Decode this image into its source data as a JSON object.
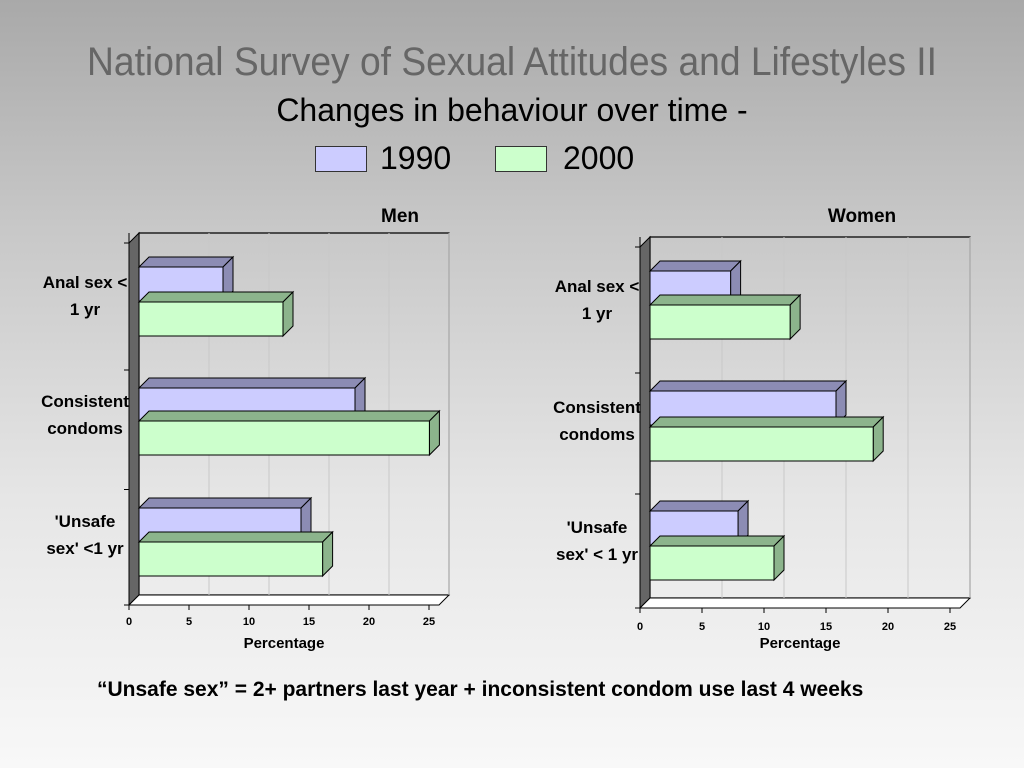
{
  "slide": {
    "title": "National Survey of Sexual Attitudes and Lifestyles II",
    "subtitle": "Changes in behaviour over time -",
    "footnote": "“Unsafe sex” = 2+ partners last year + inconsistent condom use  last 4 weeks"
  },
  "legend": [
    {
      "label": "1990",
      "color": "#ccccff"
    },
    {
      "label": "2000",
      "color": "#ccffcc"
    }
  ],
  "chart_data": [
    {
      "type": "bar",
      "orientation": "horizontal",
      "title": "Men",
      "xlabel": "Percentage",
      "xlim": [
        0,
        25
      ],
      "xticks": [
        "0",
        "5",
        "10",
        "15",
        "20",
        "25"
      ],
      "categories": [
        [
          "Anal sex <",
          "1 yr"
        ],
        [
          "Consistent",
          "condoms"
        ],
        [
          "'Unsafe",
          "sex' <1 yr"
        ]
      ],
      "series": [
        {
          "name": "1990",
          "color": "#ccccff",
          "side": "#8c8cb4",
          "values": [
            7,
            18,
            13.5
          ]
        },
        {
          "name": "2000",
          "color": "#ccffcc",
          "side": "#8cb48c",
          "values": [
            12,
            24.2,
            15.3
          ]
        }
      ]
    },
    {
      "type": "bar",
      "orientation": "horizontal",
      "title": "Women",
      "xlabel": "Percentage",
      "xlim": [
        0,
        25
      ],
      "xticks": [
        "0",
        "5",
        "10",
        "15",
        "20",
        "25"
      ],
      "categories": [
        [
          "Anal sex <",
          "1 yr"
        ],
        [
          "Consistent",
          "condoms"
        ],
        [
          "'Unsafe",
          "sex' < 1 yr"
        ]
      ],
      "series": [
        {
          "name": "1990",
          "color": "#ccccff",
          "side": "#8c8cb4",
          "values": [
            6.5,
            15,
            7.1
          ]
        },
        {
          "name": "2000",
          "color": "#ccffcc",
          "side": "#8cb48c",
          "values": [
            11.3,
            18,
            10
          ]
        }
      ]
    }
  ]
}
